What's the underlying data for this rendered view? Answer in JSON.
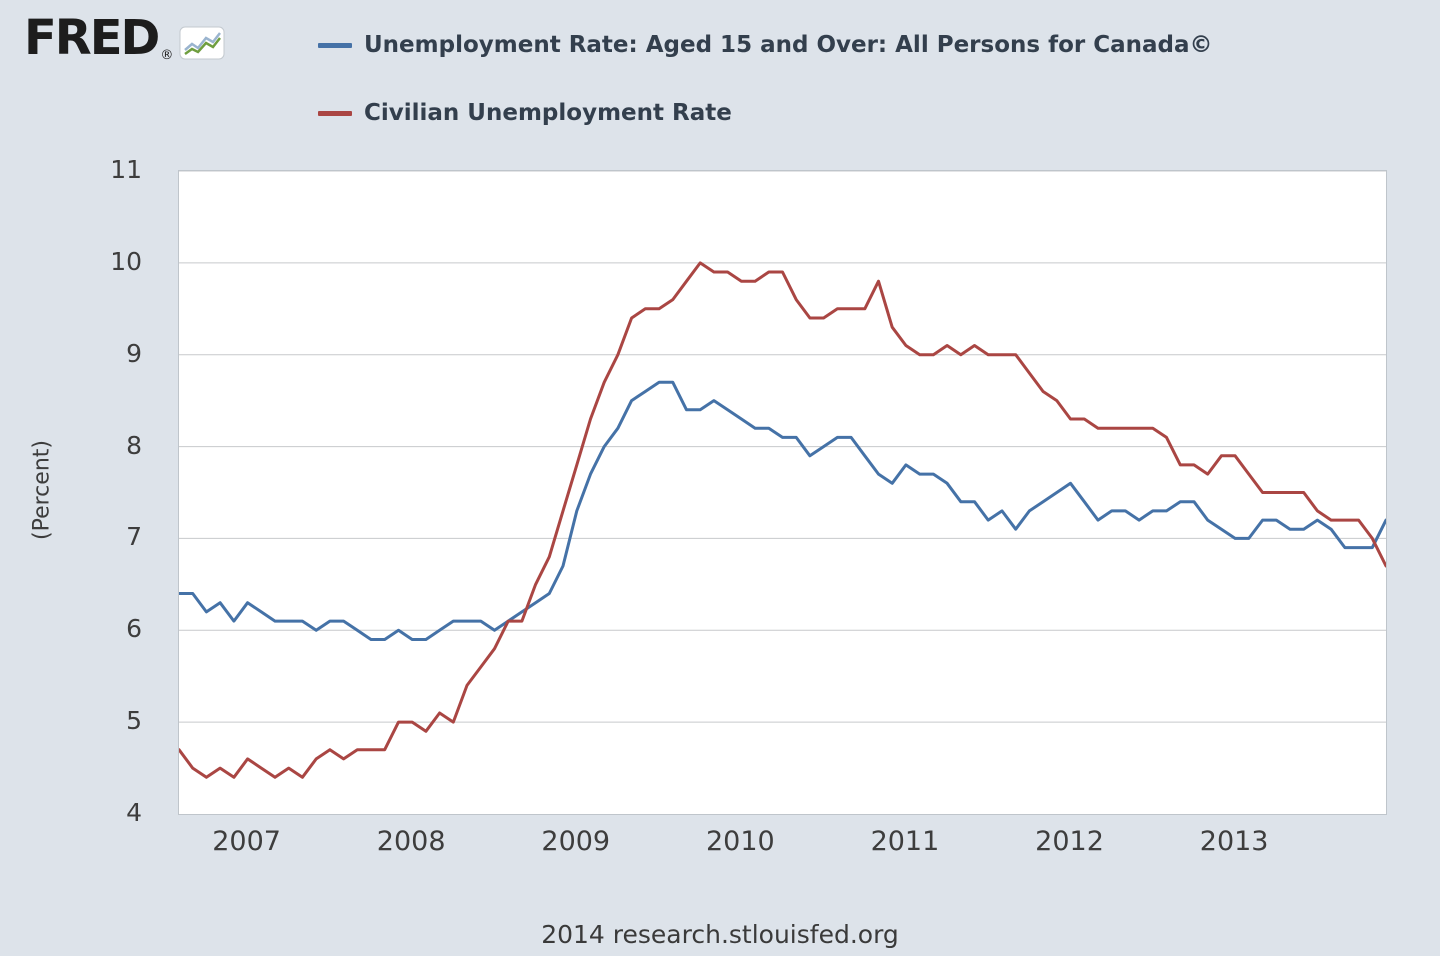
{
  "header": {
    "logo_text": "FRED",
    "registered_mark": "®"
  },
  "footer": {
    "text": "2014 research.stlouisfed.org"
  },
  "chart_data": {
    "type": "line",
    "title": "",
    "xlabel": "",
    "ylabel": "(Percent)",
    "ylim": [
      4,
      11
    ],
    "y_ticks": [
      4,
      5,
      6,
      7,
      8,
      9,
      10,
      11
    ],
    "x_tick_labels": [
      "2007",
      "2008",
      "2009",
      "2010",
      "2011",
      "2012",
      "2013"
    ],
    "x_range": {
      "start": "2006-08",
      "end": "2013-12",
      "frequency": "monthly"
    },
    "grid": "horizontal",
    "legend_position": "top-left",
    "background_color": "#dde3ea",
    "plot_background_color": "#ffffff",
    "series": [
      {
        "name": "Unemployment Rate: Aged 15 and Over: All Persons for Canada©",
        "color": "#4572a7",
        "values": [
          6.4,
          6.4,
          6.2,
          6.3,
          6.1,
          6.3,
          6.2,
          6.1,
          6.1,
          6.1,
          6.0,
          6.1,
          6.1,
          6.0,
          5.9,
          5.9,
          6.0,
          5.9,
          5.9,
          6.0,
          6.1,
          6.1,
          6.1,
          6.0,
          6.1,
          6.2,
          6.3,
          6.4,
          6.7,
          7.3,
          7.7,
          8.0,
          8.2,
          8.5,
          8.6,
          8.7,
          8.7,
          8.4,
          8.4,
          8.5,
          8.4,
          8.3,
          8.2,
          8.2,
          8.1,
          8.1,
          7.9,
          8.0,
          8.1,
          8.1,
          7.9,
          7.7,
          7.6,
          7.8,
          7.7,
          7.7,
          7.6,
          7.4,
          7.4,
          7.2,
          7.3,
          7.1,
          7.3,
          7.4,
          7.5,
          7.6,
          7.4,
          7.2,
          7.3,
          7.3,
          7.2,
          7.3,
          7.3,
          7.4,
          7.4,
          7.2,
          7.1,
          7.0,
          7.0,
          7.2,
          7.2,
          7.1,
          7.1,
          7.2,
          7.1,
          6.9,
          6.9,
          6.9,
          7.2
        ]
      },
      {
        "name": "Civilian Unemployment Rate",
        "color": "#aa4643",
        "values": [
          4.7,
          4.5,
          4.4,
          4.5,
          4.4,
          4.6,
          4.5,
          4.4,
          4.5,
          4.4,
          4.6,
          4.7,
          4.6,
          4.7,
          4.7,
          4.7,
          5.0,
          5.0,
          4.9,
          5.1,
          5.0,
          5.4,
          5.6,
          5.8,
          6.1,
          6.1,
          6.5,
          6.8,
          7.3,
          7.8,
          8.3,
          8.7,
          9.0,
          9.4,
          9.5,
          9.5,
          9.6,
          9.8,
          10.0,
          9.9,
          9.9,
          9.8,
          9.8,
          9.9,
          9.9,
          9.6,
          9.4,
          9.4,
          9.5,
          9.5,
          9.5,
          9.8,
          9.3,
          9.1,
          9.0,
          9.0,
          9.1,
          9.0,
          9.1,
          9.0,
          9.0,
          9.0,
          8.8,
          8.6,
          8.5,
          8.3,
          8.3,
          8.2,
          8.2,
          8.2,
          8.2,
          8.2,
          8.1,
          7.8,
          7.8,
          7.7,
          7.9,
          7.9,
          7.7,
          7.5,
          7.5,
          7.5,
          7.5,
          7.3,
          7.2,
          7.2,
          7.2,
          7.0,
          6.7
        ]
      }
    ]
  }
}
